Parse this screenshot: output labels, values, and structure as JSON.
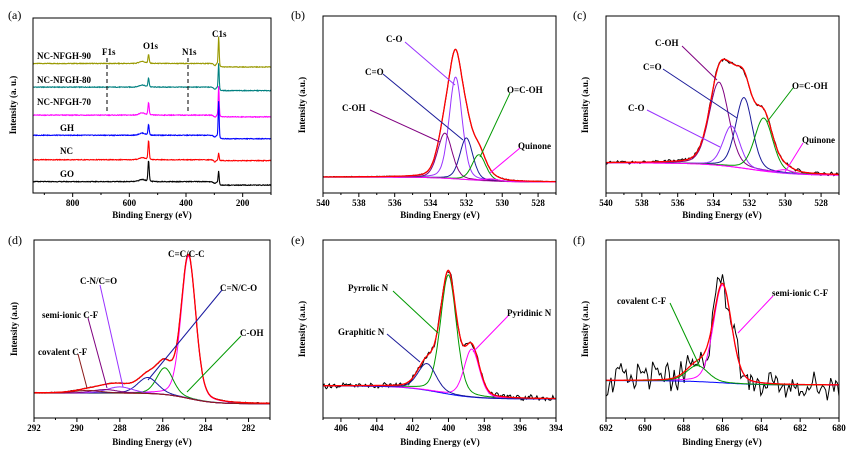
{
  "chart_data": [
    {
      "panel_label": "(a)",
      "type": "line",
      "xlabel": "Binding Energy (eV)",
      "ylabel": "Intensity (a. u.)",
      "xlim": [
        940,
        100
      ],
      "ylim": [
        0,
        1
      ],
      "xticks": [
        800,
        600,
        400,
        200
      ],
      "peak_labels": [
        "F1s",
        "O1s",
        "N1s",
        "C1s"
      ],
      "series": [
        {
          "name": "NC-NFGH-90",
          "color": "#999900",
          "offset": 0.74,
          "o1s": 0.05,
          "c1s": 0.16,
          "drop": 0.02
        },
        {
          "name": "NC-NFGH-80",
          "color": "#008080",
          "offset": 0.605,
          "o1s": 0.05,
          "c1s": 0.14,
          "drop": 0.02
        },
        {
          "name": "NC-NFGH-70",
          "color": "#ff00ff",
          "offset": 0.445,
          "o1s": 0.07,
          "c1s": 0.17,
          "drop": 0.01
        },
        {
          "name": "GH",
          "color": "#0000ff",
          "offset": 0.33,
          "o1s": 0.06,
          "c1s": 0.2,
          "drop": 0.02
        },
        {
          "name": "NC",
          "color": "#ff0000",
          "offset": 0.19,
          "o1s": 0.11,
          "c1s": 0.04,
          "drop": 0.005
        },
        {
          "name": "GO",
          "color": "#000000",
          "offset": 0.065,
          "o1s": 0.12,
          "c1s": 0.065,
          "drop": 0.02
        }
      ]
    },
    {
      "panel_label": "(b)",
      "type": "line",
      "xlabel": "Binding Energy (eV)",
      "ylabel": "Intensity (a.u.)",
      "xlim": [
        540,
        527
      ],
      "ylim": [
        0,
        1
      ],
      "xticks": [
        540,
        538,
        536,
        534,
        532,
        530,
        528
      ],
      "background": {
        "left": 0.09,
        "right": 0.062,
        "center": 532,
        "width": 1.0,
        "color": "#cc33cc"
      },
      "envelope_color": "#ff0000",
      "data_color": "#000000",
      "noise": 0.003,
      "components": [
        {
          "name": "C-O",
          "center": 532.6,
          "height": 0.575,
          "fwhm": 0.85,
          "color": "#9933ff"
        },
        {
          "name": "C=O",
          "center": 532.0,
          "height": 0.235,
          "fwhm": 0.85,
          "color": "#1a1a99"
        },
        {
          "name": "C-OH",
          "center": 533.2,
          "height": 0.255,
          "fwhm": 0.95,
          "color": "#800080"
        },
        {
          "name": "O=C-OH",
          "center": 531.3,
          "height": 0.145,
          "fwhm": 0.9,
          "color": "#009900"
        },
        {
          "name": "Quinone",
          "center": 530.6,
          "height": 0.012,
          "fwhm": 1.0,
          "color": "#ff00ff"
        }
      ]
    },
    {
      "panel_label": "(c)",
      "type": "line",
      "xlabel": "Binding Energy (eV)",
      "ylabel": "Intensity (a.u.)",
      "xlim": [
        540,
        527
      ],
      "ylim": [
        0,
        1
      ],
      "xticks": [
        540,
        538,
        536,
        534,
        532,
        530,
        528
      ],
      "background": {
        "left": 0.17,
        "right": 0.1,
        "center": 532,
        "width": 1.2,
        "color": "#ff00ff"
      },
      "envelope_color": "#ff0000",
      "data_color": "#000000",
      "noise": 0.012,
      "components": [
        {
          "name": "C-OH",
          "center": 533.7,
          "height": 0.47,
          "fwhm": 1.3,
          "color": "#800080"
        },
        {
          "name": "C=O",
          "center": 532.3,
          "height": 0.4,
          "fwhm": 1.1,
          "color": "#1a1a99"
        },
        {
          "name": "C-O",
          "center": 533.0,
          "height": 0.23,
          "fwhm": 1.1,
          "color": "#9933ff"
        },
        {
          "name": "O=C-OH",
          "center": 531.2,
          "height": 0.3,
          "fwhm": 1.2,
          "color": "#009900"
        },
        {
          "name": "Quinone",
          "center": 530.0,
          "height": 0.02,
          "fwhm": 1.0,
          "color": "#ff00ff"
        }
      ]
    },
    {
      "panel_label": "(d)",
      "type": "line",
      "xlabel": "Binding Energy (eV)",
      "ylabel": "Intensity (a.u)",
      "xlim": [
        292,
        281
      ],
      "ylim": [
        0,
        1
      ],
      "xticks": [
        292,
        290,
        288,
        286,
        284,
        282
      ],
      "peak_title": "C=C/C-C",
      "background": {
        "left": 0.14,
        "right": 0.08,
        "center": 284.8,
        "width": 0.6,
        "color": "#8b1a1a"
      },
      "envelope_color": "#ff0000",
      "data_color": "#000000",
      "noise": 0.003,
      "components": [
        {
          "name": "C=C/C-C",
          "center": 284.8,
          "height": 0.8,
          "fwhm": 0.8,
          "color": "#ff00ff"
        },
        {
          "name": "C-OH",
          "center": 285.9,
          "height": 0.15,
          "fwhm": 0.9,
          "color": "#009900"
        },
        {
          "name": "C=N/C-O",
          "center": 286.7,
          "height": 0.09,
          "fwhm": 1.1,
          "color": "#1a1aa0"
        },
        {
          "name": "C-N/C=O",
          "center": 288.0,
          "height": 0.035,
          "fwhm": 1.4,
          "color": "#9933ff"
        },
        {
          "name": "semi-ionic C-F",
          "center": 288.7,
          "height": 0.02,
          "fwhm": 1.4,
          "color": "#800080"
        },
        {
          "name": "covalent C-F",
          "center": 289.5,
          "height": 0.015,
          "fwhm": 1.5,
          "color": "#8b1a1a"
        }
      ]
    },
    {
      "panel_label": "(e)",
      "type": "line",
      "xlabel": "Binding Energy (eV)",
      "ylabel": "Intensity (a.u.)",
      "xlim": [
        407,
        394
      ],
      "ylim": [
        0,
        1
      ],
      "xticks": [
        406,
        404,
        402,
        400,
        398,
        396,
        394
      ],
      "background": {
        "left": 0.18,
        "right": 0.107,
        "center": 400.5,
        "width": 1.0,
        "color": "#0000ff"
      },
      "envelope_color": "#ff0000",
      "data_color": "#000000",
      "noise": 0.02,
      "components": [
        {
          "name": "Pyrrolic N",
          "center": 400.0,
          "height": 0.67,
          "fwhm": 1.05,
          "color": "#009900"
        },
        {
          "name": "Pyridinic N",
          "center": 398.7,
          "height": 0.27,
          "fwhm": 1.0,
          "color": "#ff00ff"
        },
        {
          "name": "Graphitic N",
          "center": 401.2,
          "height": 0.15,
          "fwhm": 1.2,
          "color": "#1a1a99"
        }
      ]
    },
    {
      "panel_label": "(f)",
      "type": "line",
      "xlabel": "Binding Energy (eV)",
      "ylabel": "Intensity (a.u.)",
      "xlim": [
        692,
        680
      ],
      "ylim": [
        0,
        1
      ],
      "xticks": [
        692,
        690,
        688,
        686,
        684,
        682,
        680
      ],
      "background": {
        "left": 0.21,
        "right": 0.185,
        "center": 686,
        "width": 1.0,
        "color": "#0000ff"
      },
      "envelope_color": "#ff0000",
      "data_color": "#000000",
      "noise": 0.11,
      "components": [
        {
          "name": "semi-ionic C-F",
          "center": 686.0,
          "height": 0.55,
          "fwhm": 1.1,
          "color": "#ff00ff"
        },
        {
          "name": "covalent C-F",
          "center": 687.3,
          "height": 0.09,
          "fwhm": 1.3,
          "color": "#009900"
        }
      ]
    }
  ]
}
